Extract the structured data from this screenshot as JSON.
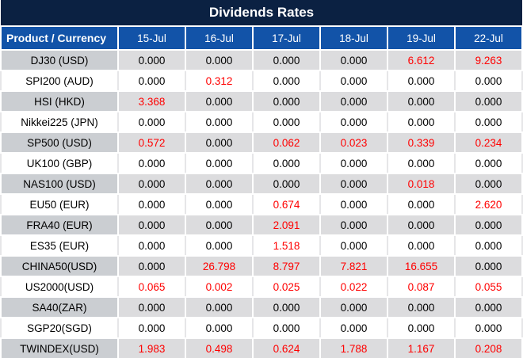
{
  "title": "Dividends Rates",
  "table": {
    "label_header": "Product / Currency",
    "date_headers": [
      "15-Jul",
      "16-Jul",
      "17-Jul",
      "18-Jul",
      "19-Jul",
      "22-Jul"
    ],
    "rows": [
      {
        "product": "DJ30 (USD)",
        "values": [
          "0.000",
          "0.000",
          "0.000",
          "0.000",
          "6.612",
          "9.263"
        ]
      },
      {
        "product": "SPI200 (AUD)",
        "values": [
          "0.000",
          "0.312",
          "0.000",
          "0.000",
          "0.000",
          "0.000"
        ]
      },
      {
        "product": "HSI (HKD)",
        "values": [
          "3.368",
          "0.000",
          "0.000",
          "0.000",
          "0.000",
          "0.000"
        ]
      },
      {
        "product": "Nikkei225 (JPN)",
        "values": [
          "0.000",
          "0.000",
          "0.000",
          "0.000",
          "0.000",
          "0.000"
        ]
      },
      {
        "product": "SP500 (USD)",
        "values": [
          "0.572",
          "0.000",
          "0.062",
          "0.023",
          "0.339",
          "0.234"
        ]
      },
      {
        "product": "UK100 (GBP)",
        "values": [
          "0.000",
          "0.000",
          "0.000",
          "0.000",
          "0.000",
          "0.000"
        ]
      },
      {
        "product": "NAS100 (USD)",
        "values": [
          "0.000",
          "0.000",
          "0.000",
          "0.000",
          "0.018",
          "0.000"
        ]
      },
      {
        "product": "EU50 (EUR)",
        "values": [
          "0.000",
          "0.000",
          "0.674",
          "0.000",
          "0.000",
          "2.620"
        ]
      },
      {
        "product": "FRA40 (EUR)",
        "values": [
          "0.000",
          "0.000",
          "2.091",
          "0.000",
          "0.000",
          "0.000"
        ]
      },
      {
        "product": "ES35 (EUR)",
        "values": [
          "0.000",
          "0.000",
          "1.518",
          "0.000",
          "0.000",
          "0.000"
        ]
      },
      {
        "product": "CHINA50(USD)",
        "values": [
          "0.000",
          "26.798",
          "8.797",
          "7.821",
          "16.655",
          "0.000"
        ]
      },
      {
        "product": "US2000(USD)",
        "values": [
          "0.065",
          "0.002",
          "0.025",
          "0.022",
          "0.087",
          "0.055"
        ]
      },
      {
        "product": "SA40(ZAR)",
        "values": [
          "0.000",
          "0.000",
          "0.000",
          "0.000",
          "0.000",
          "0.000"
        ]
      },
      {
        "product": "SGP20(SGD)",
        "values": [
          "0.000",
          "0.000",
          "0.000",
          "0.000",
          "0.000",
          "0.000"
        ]
      },
      {
        "product": "TWINDEX(USD)",
        "values": [
          "1.983",
          "0.498",
          "0.624",
          "1.788",
          "1.167",
          "0.208"
        ]
      }
    ]
  },
  "colors": {
    "title_bar_bg": "#0b2142",
    "header_row_bg": "#1253a8",
    "header_text": "#ffffff",
    "gray_row_bg": "#dcdcde",
    "gray_label_bg": "#cbced2",
    "white_row_bg": "#ffffff",
    "zero_value_text": "#000000",
    "nonzero_value_text": "#ff0000"
  }
}
